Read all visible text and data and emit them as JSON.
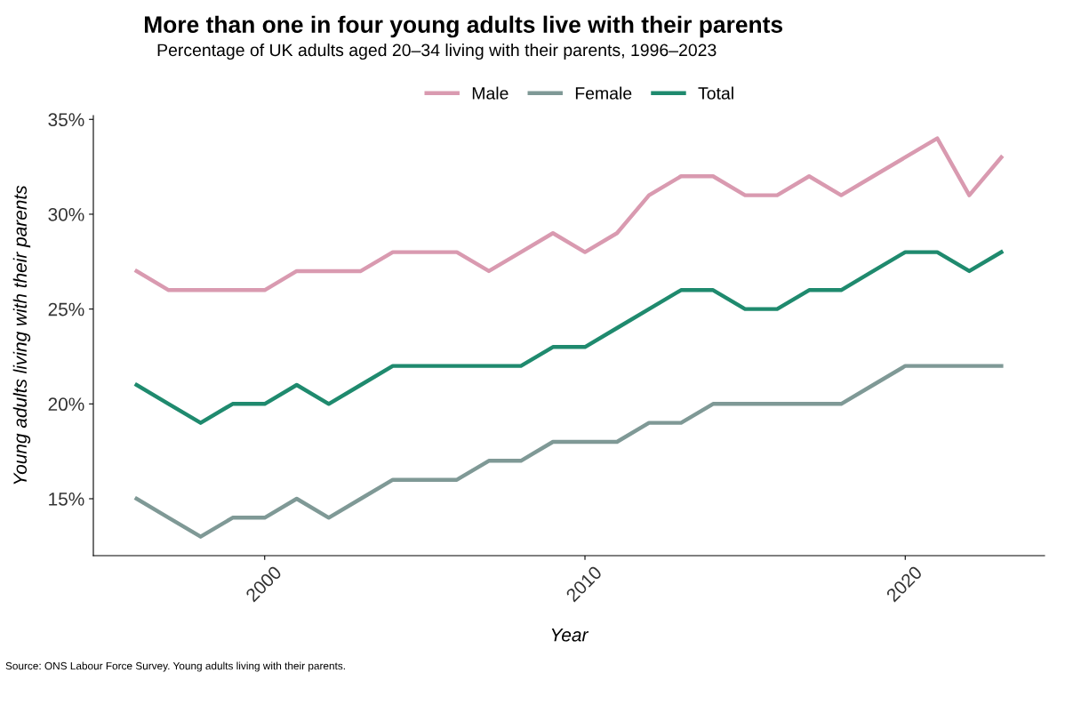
{
  "chart_data": {
    "type": "line",
    "title": "More than one in four young adults live with their parents",
    "subtitle": "Percentage of UK adults aged 20–34 living with their parents, 1996–2023",
    "xlabel": "Year",
    "ylabel": "Young adults living with their parents",
    "x": [
      1996,
      1997,
      1998,
      1999,
      2000,
      2001,
      2002,
      2003,
      2004,
      2005,
      2006,
      2007,
      2008,
      2009,
      2010,
      2011,
      2012,
      2013,
      2014,
      2015,
      2016,
      2017,
      2018,
      2019,
      2020,
      2021,
      2022,
      2023
    ],
    "series": [
      {
        "name": "Male",
        "color": "#d99ab0",
        "values": [
          27,
          26,
          26,
          26,
          26,
          27,
          27,
          27,
          28,
          28,
          28,
          27,
          28,
          29,
          28,
          29,
          31,
          32,
          32,
          31,
          31,
          32,
          31,
          32,
          33,
          34,
          31,
          33
        ]
      },
      {
        "name": "Female",
        "color": "#7f9996",
        "values": [
          15,
          14,
          13,
          14,
          14,
          15,
          14,
          15,
          16,
          16,
          16,
          17,
          17,
          18,
          18,
          18,
          19,
          19,
          20,
          20,
          20,
          20,
          20,
          21,
          22,
          22,
          22,
          22
        ]
      },
      {
        "name": "Total",
        "color": "#1f8a6e",
        "values": [
          21,
          20,
          19,
          20,
          20,
          21,
          20,
          21,
          22,
          22,
          22,
          22,
          22,
          23,
          23,
          24,
          25,
          26,
          26,
          25,
          25,
          26,
          26,
          27,
          28,
          28,
          27,
          28
        ]
      }
    ],
    "xlim": [
      1994.65,
      2024.35
    ],
    "xticks": [
      2000,
      2010,
      2020
    ],
    "ylim": [
      12,
      35.2
    ],
    "yticks": [
      {
        "value": 15,
        "label": "15%"
      },
      {
        "value": 20,
        "label": "20%"
      },
      {
        "value": 25,
        "label": "25%"
      },
      {
        "value": 30,
        "label": "30%"
      },
      {
        "value": 35,
        "label": "35%"
      }
    ],
    "grid": false,
    "legend": "top",
    "marker": "none",
    "line_style": "solid",
    "annotations": [
      "Source: ONS Labour Force Survey. Young adults living with their parents."
    ]
  }
}
